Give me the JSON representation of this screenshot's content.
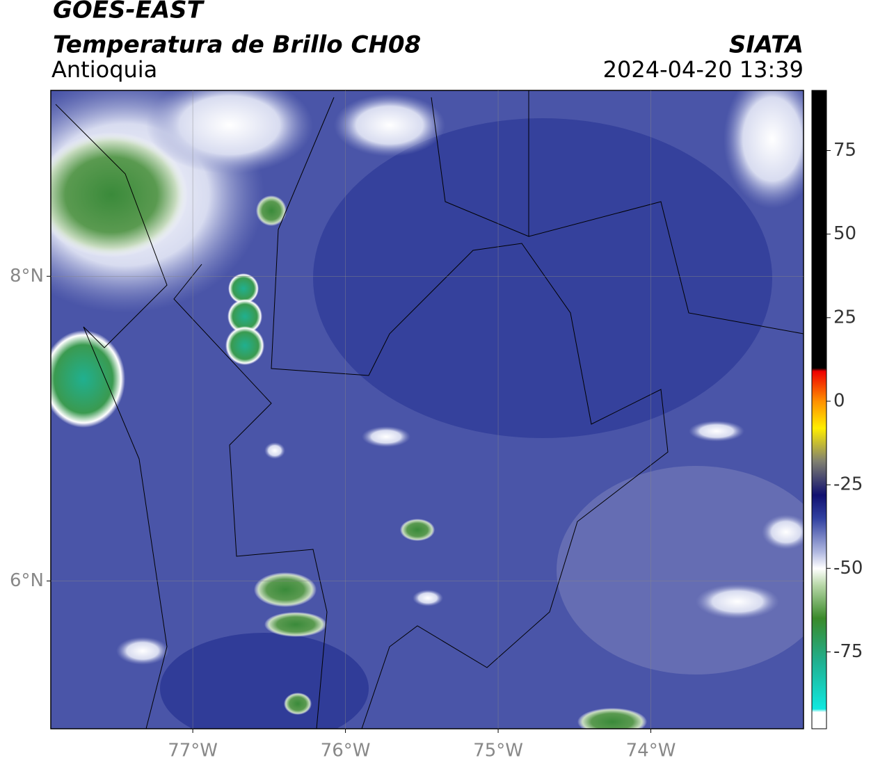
{
  "header": {
    "title": "GOES-EAST",
    "subtitle": "Temperatura de Brillo CH08",
    "region": "Antioquia",
    "source": "SIATA",
    "datetime": "2024-04-20 13:39"
  },
  "map": {
    "xlim": [
      -77.93,
      -73.0
    ],
    "ylim": [
      5.03,
      9.22
    ],
    "xticks": [
      {
        "value": -77,
        "label": "77°W"
      },
      {
        "value": -76,
        "label": "76°W"
      },
      {
        "value": -75,
        "label": "75°W"
      },
      {
        "value": -74,
        "label": "74°W"
      }
    ],
    "yticks": [
      {
        "value": 8,
        "label": "8°N"
      },
      {
        "value": 6,
        "label": "6°N"
      }
    ],
    "grid": true
  },
  "colorbar": {
    "lim": [
      -98,
      93
    ],
    "ticks": [
      75,
      50,
      25,
      0,
      -25,
      -50,
      -75
    ]
  }
}
